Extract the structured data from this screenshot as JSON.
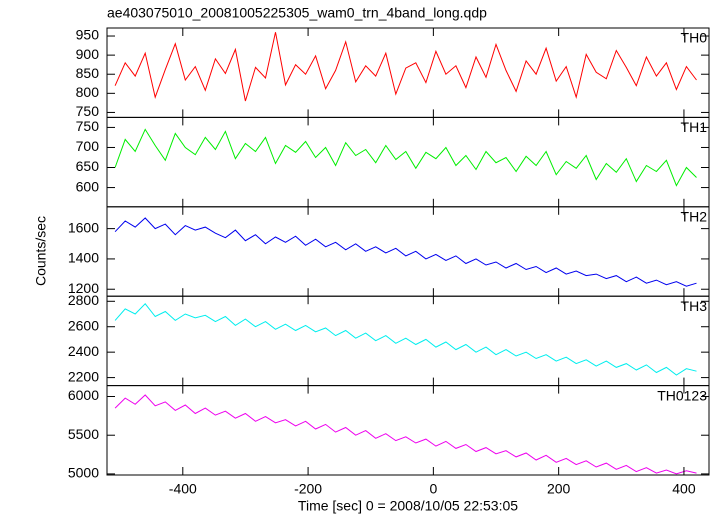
{
  "chart_data": {
    "type": "line",
    "title": "ae403075010_20081005225305_wam0_trn_4band_long.qdp",
    "xlabel": "Time [sec] 0 = 2008/10/05 22:53:05",
    "ylabel": "Counts/sec",
    "xlim": [
      -521,
      440
    ],
    "xticks": [
      -400,
      -200,
      0,
      200,
      400
    ],
    "x": [
      -508,
      -492,
      -476,
      -460,
      -444,
      -428,
      -412,
      -396,
      -380,
      -364,
      -348,
      -332,
      -316,
      -300,
      -284,
      -268,
      -252,
      -236,
      -220,
      -204,
      -188,
      -172,
      -156,
      -140,
      -124,
      -108,
      -92,
      -76,
      -60,
      -44,
      -28,
      -12,
      4,
      20,
      36,
      52,
      68,
      84,
      100,
      116,
      132,
      148,
      164,
      180,
      196,
      212,
      228,
      244,
      260,
      276,
      292,
      308,
      324,
      340,
      356,
      372,
      388,
      404,
      420
    ],
    "series": [
      {
        "name": "TH0",
        "color": "#ff0000",
        "ylim": [
          737,
          971
        ],
        "yticks": [
          750,
          800,
          850,
          900,
          950
        ],
        "values": [
          820,
          880,
          845,
          905,
          790,
          862,
          930,
          835,
          870,
          808,
          890,
          852,
          915,
          780,
          868,
          840,
          960,
          822,
          875,
          850,
          898,
          812,
          860,
          935,
          830,
          872,
          845,
          905,
          798,
          866,
          880,
          828,
          910,
          850,
          872,
          815,
          895,
          842,
          928,
          860,
          805,
          885,
          850,
          918,
          832,
          870,
          790,
          902,
          855,
          838,
          912,
          868,
          820,
          895,
          845,
          880,
          810,
          870,
          835
        ]
      },
      {
        "name": "TH1",
        "color": "#00ee00",
        "ylim": [
          552,
          775
        ],
        "yticks": [
          600,
          650,
          700,
          750
        ],
        "values": [
          650,
          720,
          690,
          745,
          705,
          668,
          735,
          700,
          682,
          725,
          695,
          740,
          672,
          710,
          690,
          725,
          660,
          705,
          688,
          715,
          675,
          700,
          655,
          712,
          680,
          695,
          662,
          705,
          670,
          690,
          648,
          688,
          672,
          700,
          655,
          680,
          645,
          690,
          662,
          675,
          640,
          678,
          655,
          690,
          632,
          665,
          648,
          680,
          620,
          660,
          638,
          672,
          615,
          655,
          640,
          668,
          605,
          650,
          625
        ]
      },
      {
        "name": "TH2",
        "color": "#0000ee",
        "ylim": [
          1154,
          1744
        ],
        "yticks": [
          1200,
          1400,
          1600
        ],
        "values": [
          1580,
          1650,
          1610,
          1670,
          1600,
          1630,
          1560,
          1620,
          1590,
          1610,
          1570,
          1540,
          1590,
          1520,
          1560,
          1500,
          1545,
          1510,
          1550,
          1490,
          1530,
          1480,
          1510,
          1460,
          1500,
          1450,
          1480,
          1440,
          1470,
          1420,
          1450,
          1400,
          1430,
          1390,
          1420,
          1370,
          1400,
          1360,
          1380,
          1340,
          1370,
          1330,
          1350,
          1310,
          1340,
          1300,
          1320,
          1290,
          1300,
          1270,
          1290,
          1250,
          1280,
          1240,
          1260,
          1230,
          1250,
          1220,
          1240
        ]
      },
      {
        "name": "TH3",
        "color": "#00eeee",
        "ylim": [
          2137,
          2840
        ],
        "yticks": [
          2200,
          2400,
          2600,
          2800
        ],
        "values": [
          2650,
          2740,
          2700,
          2780,
          2680,
          2720,
          2650,
          2700,
          2670,
          2690,
          2640,
          2680,
          2610,
          2660,
          2600,
          2640,
          2580,
          2620,
          2570,
          2610,
          2560,
          2590,
          2530,
          2570,
          2510,
          2550,
          2490,
          2530,
          2470,
          2510,
          2460,
          2500,
          2440,
          2480,
          2420,
          2460,
          2400,
          2440,
          2380,
          2420,
          2370,
          2400,
          2350,
          2380,
          2330,
          2360,
          2310,
          2340,
          2290,
          2330,
          2280,
          2310,
          2260,
          2300,
          2240,
          2280,
          2220,
          2270,
          2250
        ]
      },
      {
        "name": "TH0123",
        "color": "#ee00ee",
        "ylim": [
          4986,
          6141
        ],
        "yticks": [
          5000,
          5500,
          6000
        ],
        "values": [
          5850,
          5980,
          5900,
          6020,
          5880,
          5930,
          5820,
          5890,
          5780,
          5850,
          5760,
          5810,
          5720,
          5780,
          5680,
          5740,
          5660,
          5700,
          5620,
          5680,
          5580,
          5640,
          5540,
          5600,
          5500,
          5560,
          5460,
          5520,
          5430,
          5480,
          5400,
          5450,
          5360,
          5420,
          5330,
          5380,
          5290,
          5340,
          5260,
          5300,
          5220,
          5270,
          5180,
          5240,
          5150,
          5200,
          5120,
          5170,
          5090,
          5140,
          5060,
          5110,
          5030,
          5080,
          5010,
          5050,
          5000,
          5040,
          5010
        ]
      }
    ]
  }
}
